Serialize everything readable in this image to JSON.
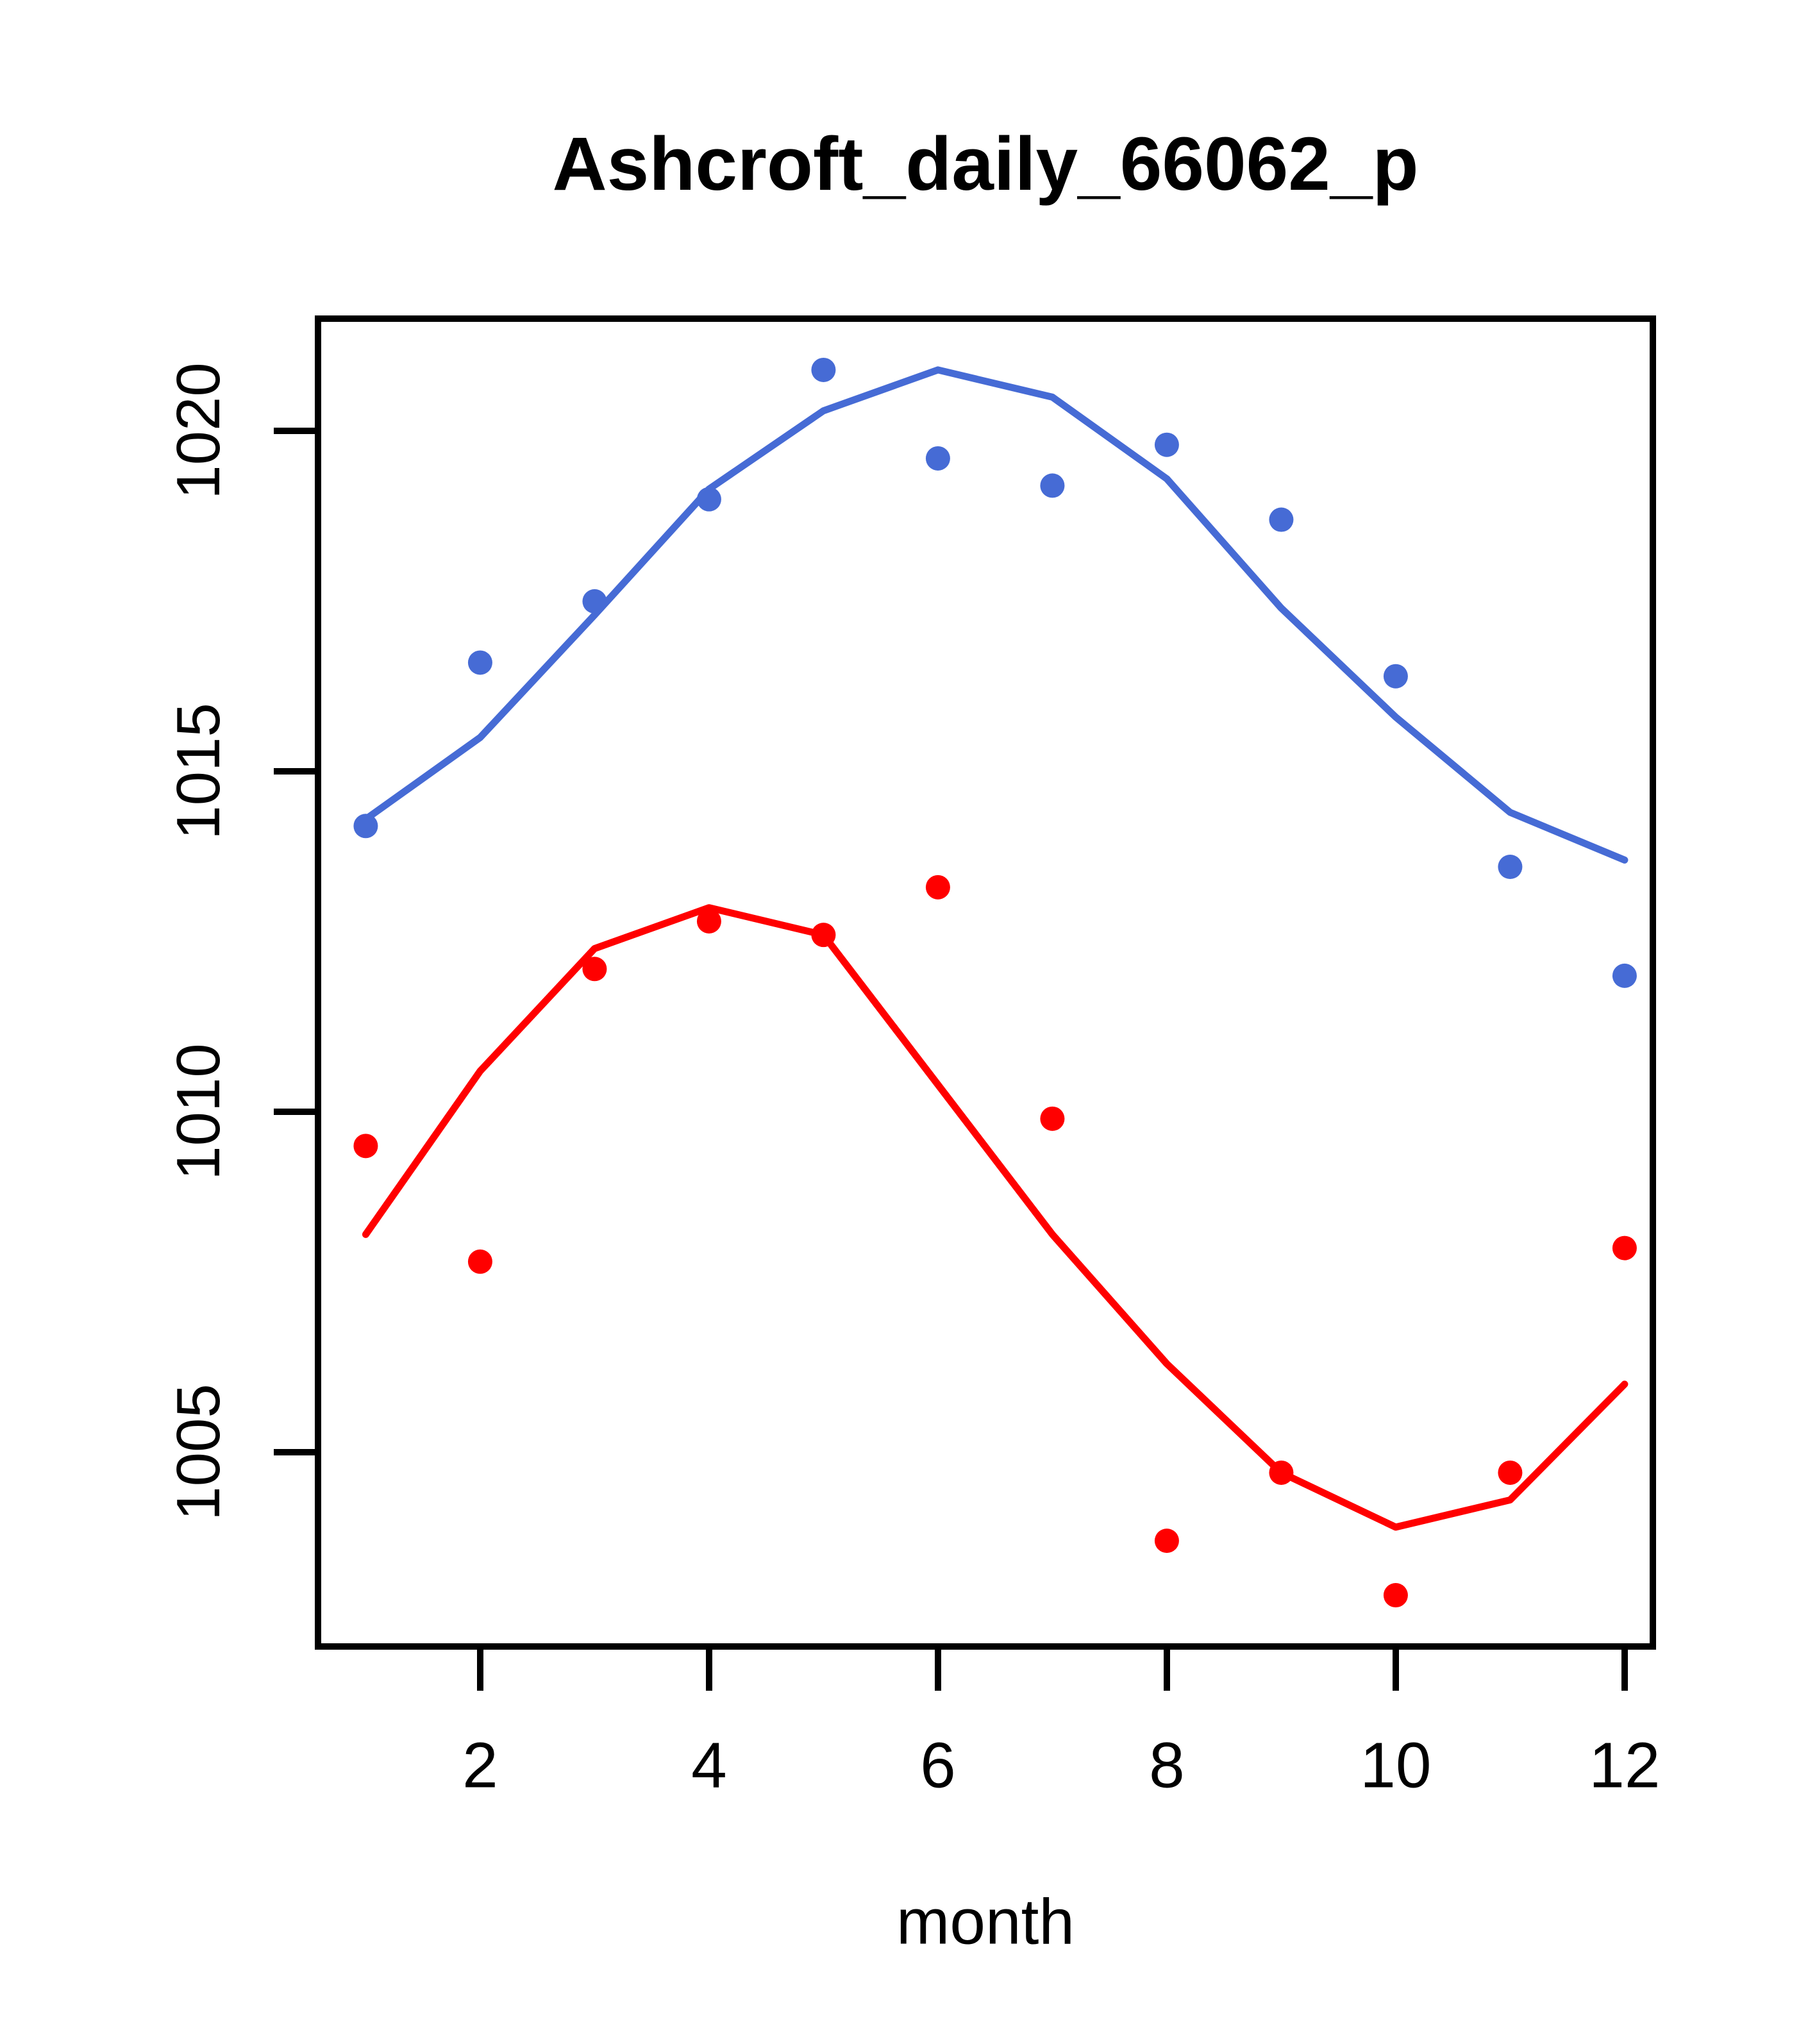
{
  "page": {
    "background": "#ffffff"
  },
  "chart_data": {
    "type": "scatter",
    "title": "Ashcroft_daily_66062_p",
    "xlabel": "month",
    "ylabel": "",
    "grid": false,
    "legend": "none",
    "x": [
      1,
      2,
      3,
      4,
      5,
      6,
      7,
      8,
      9,
      10,
      11,
      12
    ],
    "xlim": [
      0.555,
      12.275
    ],
    "ylim": [
      1002.1,
      1021.7
    ],
    "x_ticks": [
      2,
      4,
      6,
      8,
      10,
      12
    ],
    "y_ticks": [
      1005,
      1010,
      1015,
      1020
    ],
    "colors": {
      "blue": "#466BD5",
      "red": "#FF0000",
      "axis": "#000000"
    },
    "series": [
      {
        "name": "blue-points",
        "type": "scatter",
        "color": "#466BD5",
        "values": [
          1014.2,
          1016.6,
          1017.5,
          1019.0,
          1020.9,
          1019.6,
          1019.2,
          1019.8,
          1018.7,
          1016.4,
          1013.6,
          1012.0
        ]
      },
      {
        "name": "blue-line",
        "type": "line",
        "color": "#466BD5",
        "values": [
          1014.3,
          1015.5,
          1017.3,
          1019.15,
          1020.3,
          1020.9,
          1020.5,
          1019.3,
          1017.4,
          1015.8,
          1014.4,
          1013.7
        ]
      },
      {
        "name": "red-points",
        "type": "scatter",
        "color": "#FF0000",
        "values": [
          1009.5,
          1007.8,
          1012.1,
          1012.8,
          1012.6,
          1013.3,
          1009.9,
          1003.7,
          1004.7,
          1002.9,
          1004.7,
          1008.0
        ]
      },
      {
        "name": "red-line",
        "type": "line",
        "color": "#FF0000",
        "values": [
          1008.2,
          1010.6,
          1012.4,
          1013.0,
          1012.6,
          1010.4,
          1008.2,
          1006.3,
          1004.7,
          1003.9,
          1004.3,
          1006.0
        ]
      }
    ]
  }
}
